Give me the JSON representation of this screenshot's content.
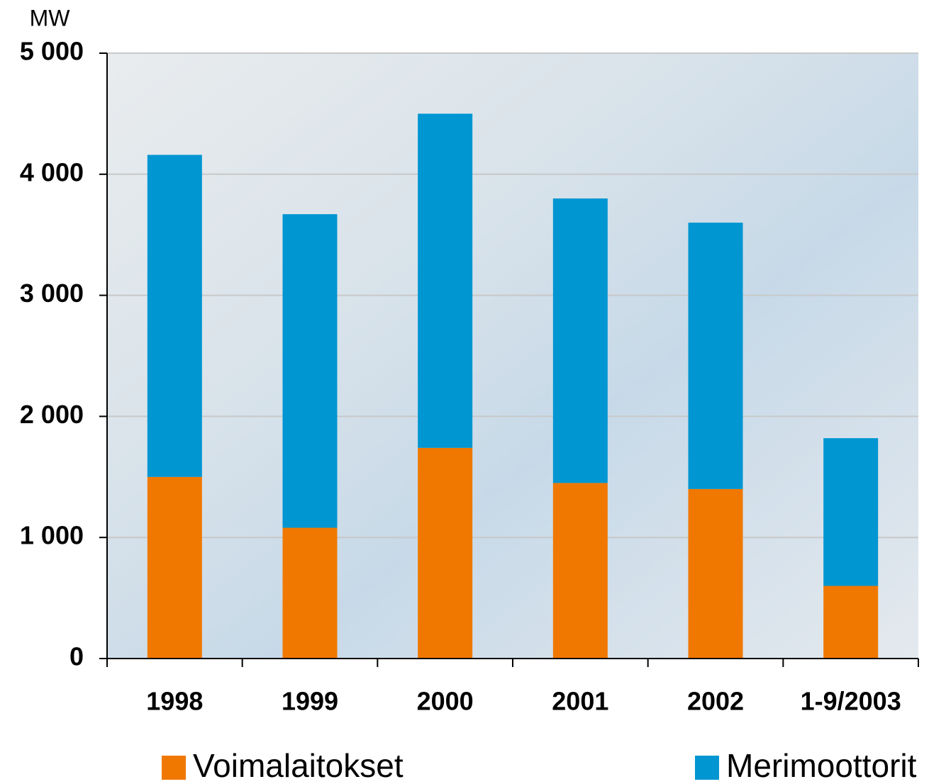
{
  "chart_data": {
    "type": "stacked-bar",
    "y_label": "MW",
    "categories": [
      "1998",
      "1999",
      "2000",
      "2001",
      "2002",
      "1-9/2003"
    ],
    "series": [
      {
        "name": "Voimalaitokset",
        "color": "#f07800",
        "values": [
          1500,
          1080,
          1740,
          1450,
          1400,
          600
        ]
      },
      {
        "name": "Merimoottorit",
        "color": "#0096d2",
        "values": [
          2660,
          2590,
          2760,
          2350,
          2200,
          1220
        ]
      }
    ],
    "ylim": [
      0,
      5000
    ],
    "yticks": [
      0,
      {
        "value": 1000,
        "label": "1 000"
      },
      {
        "value": 2000,
        "label": "2 000"
      },
      {
        "value": 3000,
        "label": "3 000"
      },
      {
        "value": 4000,
        "label": "4 000"
      },
      {
        "value": 5000,
        "label": "5 000"
      }
    ],
    "grid": true
  }
}
